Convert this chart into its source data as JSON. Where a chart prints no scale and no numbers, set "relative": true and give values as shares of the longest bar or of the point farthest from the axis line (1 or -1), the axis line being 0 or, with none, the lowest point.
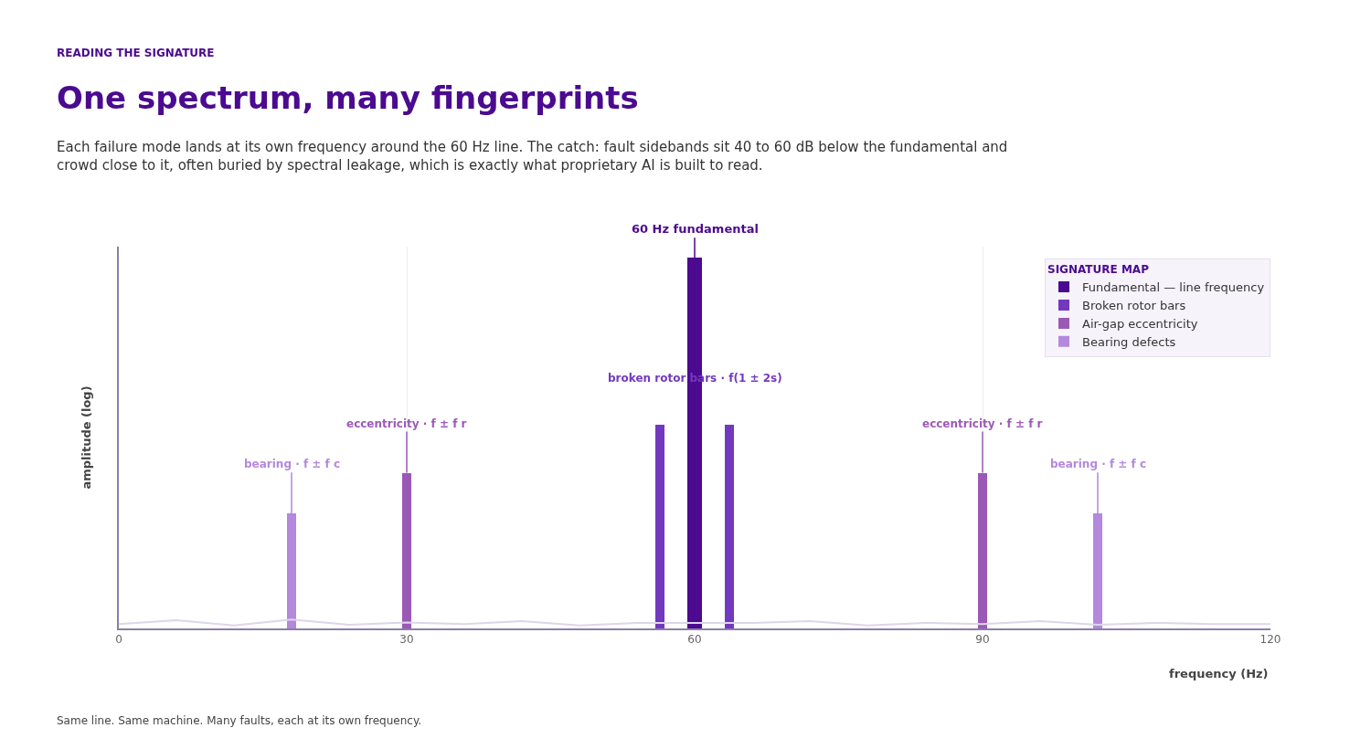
{
  "chart_data": {
    "type": "bar",
    "relative": true,
    "title": "One spectrum, many fingerprints",
    "subtitle": "Each failure mode lands at its own frequency around the 60 Hz line. The catch: fault sidebands sit 40 to 60 dB below the fundamental and crowd close to it, often buried by spectral leakage, which is exactly what proprietary AI is built to read.",
    "xlabel": "frequency (Hz)",
    "ylabel": "amplitude (log)",
    "legend_title": "SIGNATURE MAP",
    "xlim": [
      0,
      120
    ],
    "xticks": [
      0,
      30,
      60,
      90,
      120
    ],
    "grid": "x",
    "legend": "top right",
    "series": [
      {
        "name": "Fundamental — line frequency",
        "color": "#4b0a8f",
        "x": [
          60
        ],
        "values": [
          1
        ]
      },
      {
        "name": "Broken rotor bars",
        "color": "#7239bf",
        "x": [
          56.4,
          63.6
        ],
        "values": [
          0.55,
          0.55
        ]
      },
      {
        "name": "Air-gap eccentricity",
        "color": "#9b59b6",
        "x": [
          30,
          90
        ],
        "values": [
          0.42,
          0.42
        ]
      },
      {
        "name": "Bearing defects",
        "color": "#b388dd",
        "x": [
          18,
          102
        ],
        "values": [
          0.31,
          0.31
        ]
      },
      {
        "type": "line",
        "color": "#dcd6ea",
        "x": [
          0,
          6,
          12,
          18,
          24,
          30,
          36,
          42,
          48,
          54,
          60,
          66,
          72,
          78,
          84,
          90,
          96,
          102,
          108,
          114,
          120
        ],
        "values": [
          0.012,
          0.022,
          0.008,
          0.024,
          0.01,
          0.016,
          0.012,
          0.02,
          0.008,
          0.015,
          0.015,
          0.015,
          0.02,
          0.008,
          0.015,
          0.012,
          0.02,
          0.01,
          0.015,
          0.012,
          0.012
        ]
      }
    ],
    "annotations": [
      "READING THE SIGNATURE",
      {
        "text": "60 Hz fundamental",
        "x": 60,
        "y": 1
      },
      "broken rotor bars · f(1 ± 2s)",
      {
        "text": "eccentricity · f ± f r",
        "x": 30,
        "y": 0.42
      },
      {
        "text": "eccentricity · f ± f r",
        "x": 90,
        "y": 0.42
      },
      {
        "text": "bearing · f ± f c",
        "x": 18,
        "y": 0.31
      },
      {
        "text": "bearing · f ± f c",
        "x": 102,
        "y": 0.31
      },
      "Same line. Same machine. Many faults, each at its own frequency."
    ]
  }
}
